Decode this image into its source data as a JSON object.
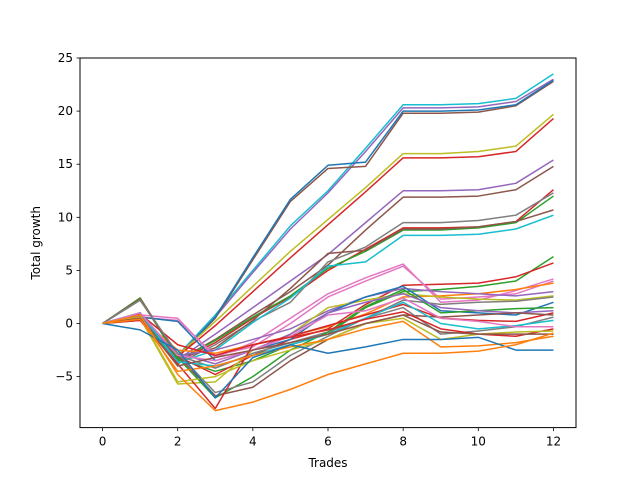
{
  "chart_data": {
    "type": "line",
    "title": "",
    "xlabel": "Trades",
    "ylabel": "Total growth",
    "xlim": [
      -0.6,
      12.6
    ],
    "ylim": [
      -9.8,
      25
    ],
    "x": [
      0,
      1,
      2,
      3,
      4,
      5,
      6,
      7,
      8,
      9,
      10,
      11,
      12
    ],
    "xticks": [
      0,
      2,
      4,
      6,
      8,
      10,
      12
    ],
    "yticks": [
      -5,
      0,
      5,
      10,
      15,
      20,
      25
    ],
    "legend": "none",
    "grid": false,
    "series": [
      {
        "color": "#17becf",
        "values": [
          0,
          1.0,
          -3.0,
          0.8,
          5.0,
          9.2,
          12.5,
          16.5,
          20.6,
          20.6,
          20.7,
          21.2,
          23.5
        ]
      },
      {
        "color": "#9467bd",
        "values": [
          0,
          0.9,
          -3.1,
          0.6,
          4.8,
          8.9,
          12.3,
          16.2,
          20.3,
          20.3,
          20.4,
          20.9,
          23.0
        ]
      },
      {
        "color": "#8c564b",
        "values": [
          0,
          1.0,
          -3.2,
          0.5,
          6.0,
          11.5,
          14.6,
          14.8,
          19.8,
          19.8,
          19.9,
          20.5,
          22.8
        ]
      },
      {
        "color": "#1f77b4",
        "values": [
          0,
          1.0,
          -3.2,
          0.6,
          6.2,
          11.7,
          14.9,
          15.2,
          20.0,
          20.0,
          20.1,
          20.6,
          22.9
        ]
      },
      {
        "color": "#bcbd22",
        "values": [
          0,
          0.9,
          -3.0,
          0.2,
          3.5,
          6.8,
          9.8,
          12.8,
          16.0,
          16.0,
          16.2,
          16.7,
          19.7
        ]
      },
      {
        "color": "#d62728",
        "values": [
          0,
          0.8,
          -3.1,
          -0.2,
          3.0,
          6.2,
          9.3,
          12.4,
          15.6,
          15.6,
          15.7,
          16.2,
          19.3
        ]
      },
      {
        "color": "#9467bd",
        "values": [
          0,
          0.6,
          -3.4,
          -1.0,
          1.5,
          4.0,
          6.5,
          9.5,
          12.5,
          12.5,
          12.6,
          13.2,
          15.4
        ]
      },
      {
        "color": "#8c564b",
        "values": [
          0,
          0.7,
          -3.5,
          -1.5,
          0.8,
          3.0,
          5.5,
          8.8,
          11.9,
          11.9,
          12.0,
          12.6,
          14.8
        ]
      },
      {
        "color": "#d62728",
        "values": [
          0,
          0.4,
          -3.6,
          -1.8,
          0.5,
          2.5,
          5.0,
          7.0,
          9.0,
          9.0,
          9.1,
          9.6,
          12.6
        ]
      },
      {
        "color": "#2ca02c",
        "values": [
          0,
          0.5,
          -3.5,
          -1.6,
          0.6,
          2.6,
          5.2,
          6.8,
          8.8,
          8.8,
          9.0,
          9.5,
          12.0
        ]
      },
      {
        "color": "#7f7f7f",
        "values": [
          0,
          0.3,
          -3.8,
          -2.0,
          0.2,
          2.0,
          5.8,
          7.2,
          9.5,
          9.5,
          9.7,
          10.2,
          12.3
        ]
      },
      {
        "color": "#8c564b",
        "values": [
          0,
          0.6,
          -3.3,
          -2.3,
          0.3,
          3.3,
          6.6,
          6.9,
          8.9,
          8.9,
          9.1,
          9.6,
          10.7
        ]
      },
      {
        "color": "#17becf",
        "values": [
          0,
          0.4,
          -3.7,
          -2.5,
          0.1,
          2.4,
          5.4,
          5.8,
          8.3,
          8.3,
          8.4,
          8.9,
          10.2
        ]
      },
      {
        "color": "#2ca02c",
        "values": [
          0,
          2.3,
          -3.3,
          -4.5,
          -3.5,
          -2.0,
          -1.0,
          1.5,
          3.0,
          3.2,
          3.5,
          4.0,
          6.3
        ]
      },
      {
        "color": "#d62728",
        "values": [
          0,
          2.4,
          -3.1,
          -4.8,
          -3.0,
          -1.5,
          -0.5,
          1.8,
          3.6,
          3.7,
          3.8,
          4.4,
          5.7
        ]
      },
      {
        "color": "#e377c2",
        "values": [
          0,
          0.8,
          0.5,
          -3.2,
          -1.8,
          0.5,
          2.8,
          4.3,
          5.6,
          2.0,
          2.2,
          3.1,
          4.2
        ]
      },
      {
        "color": "#e377c2",
        "values": [
          0,
          0.6,
          0.3,
          -3.0,
          -2.2,
          0.0,
          2.5,
          4.0,
          5.4,
          2.3,
          2.5,
          2.8,
          4.0
        ]
      },
      {
        "color": "#ff7f0e",
        "values": [
          0,
          0.5,
          -2.5,
          -2.8,
          -2.0,
          -1.2,
          -0.3,
          0.9,
          2.5,
          2.6,
          2.8,
          3.2,
          3.8
        ]
      },
      {
        "color": "#9467bd",
        "values": [
          0,
          0.7,
          -3.0,
          -2.5,
          -1.5,
          -0.5,
          1.2,
          2.5,
          3.3,
          3.0,
          2.8,
          2.6,
          3.0
        ]
      },
      {
        "color": "#bcbd22",
        "values": [
          0,
          0.5,
          -5.7,
          -5.5,
          -2.5,
          -1.0,
          1.5,
          2.2,
          2.8,
          2.5,
          2.3,
          2.2,
          2.6
        ]
      },
      {
        "color": "#7f7f7f",
        "values": [
          0,
          2.2,
          -3.0,
          -4.2,
          -2.8,
          -1.8,
          -0.8,
          0.5,
          2.2,
          1.8,
          2.0,
          2.1,
          2.5
        ]
      },
      {
        "color": "#1f77b4",
        "values": [
          0,
          0.6,
          0.2,
          -3.5,
          -2.5,
          -1.5,
          1.0,
          2.5,
          3.5,
          1.2,
          1.0,
          0.8,
          2.0
        ]
      },
      {
        "color": "#2ca02c",
        "values": [
          0,
          2.4,
          -3.2,
          -7.0,
          -5.0,
          -2.5,
          -0.8,
          1.6,
          3.2,
          1.0,
          1.2,
          1.4,
          1.5
        ]
      },
      {
        "color": "#9467bd",
        "values": [
          0,
          0.5,
          -2.8,
          -3.8,
          -2.5,
          -1.0,
          1.0,
          2.0,
          2.8,
          1.5,
          1.2,
          1.0,
          1.2
        ]
      },
      {
        "color": "#d62728",
        "values": [
          0,
          0.9,
          -2.0,
          -3.0,
          -2.0,
          -1.2,
          -0.2,
          0.8,
          1.8,
          0.5,
          0.3,
          0.2,
          1.0
        ]
      },
      {
        "color": "#8c564b",
        "values": [
          0,
          2.3,
          -3.0,
          -6.8,
          -6.0,
          -3.5,
          -1.5,
          0.0,
          0.8,
          0.6,
          0.8,
          1.0,
          0.8
        ]
      },
      {
        "color": "#7f7f7f",
        "values": [
          0,
          2.2,
          -2.8,
          -6.5,
          -5.5,
          -3.0,
          -1.2,
          0.5,
          1.5,
          -1.0,
          -0.7,
          -0.3,
          0.6
        ]
      },
      {
        "color": "#17becf",
        "values": [
          0,
          1.0,
          -3.6,
          -4.0,
          -3.0,
          -2.0,
          -1.0,
          0.5,
          2.0,
          0.0,
          -0.5,
          -0.2,
          0.3
        ]
      },
      {
        "color": "#e377c2",
        "values": [
          0,
          1.0,
          -3.0,
          -3.5,
          -2.5,
          -1.2,
          0.8,
          1.2,
          2.4,
          0.5,
          0.2,
          -0.3,
          -0.3
        ]
      },
      {
        "color": "#d62728",
        "values": [
          0,
          0.3,
          -3.8,
          -8.0,
          -2.0,
          -1.3,
          -0.6,
          0.4,
          1.1,
          -0.5,
          -1.0,
          -1.2,
          -0.5
        ]
      },
      {
        "color": "#bcbd22",
        "values": [
          0,
          0.6,
          -5.5,
          -5.0,
          -3.5,
          -2.5,
          -1.5,
          0.0,
          0.5,
          -1.5,
          -1.0,
          -0.8,
          -0.7
        ]
      },
      {
        "color": "#8c564b",
        "values": [
          0,
          0.5,
          -4.0,
          -3.2,
          -2.5,
          -1.8,
          -1.0,
          0.0,
          0.8,
          -0.8,
          -1.0,
          -1.0,
          -1.0
        ]
      },
      {
        "color": "#ff7f0e",
        "values": [
          0,
          0.4,
          -4.5,
          -4.0,
          -3.0,
          -2.2,
          -1.5,
          -0.5,
          0.2,
          -2.2,
          -2.1,
          -1.8,
          -1.2
        ]
      },
      {
        "color": "#1f77b4",
        "values": [
          0,
          -0.6,
          -2.5,
          -7.0,
          -3.2,
          -2.0,
          -2.8,
          -2.2,
          -1.5,
          -1.5,
          -1.3,
          -2.5,
          -2.5
        ]
      },
      {
        "color": "#ff7f0e",
        "values": [
          0,
          0.8,
          -4.8,
          -8.2,
          -7.4,
          -6.2,
          -4.8,
          -3.8,
          -2.8,
          -2.8,
          -2.6,
          -2.0,
          -0.9
        ]
      }
    ]
  }
}
